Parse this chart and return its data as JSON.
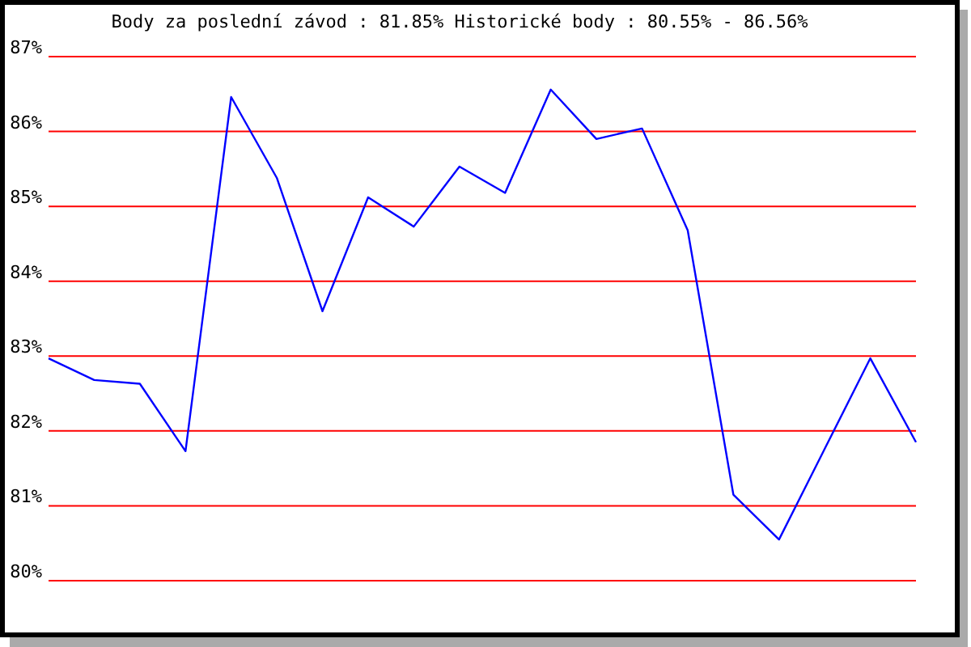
{
  "chart_data": {
    "type": "line",
    "title": "Body za poslední závod : 81.85%  Historické body : 80.55% - 86.56%",
    "categories": [
      null,
      null,
      null,
      null,
      null,
      null,
      null,
      null,
      null,
      null,
      null,
      null,
      null,
      null,
      null,
      null,
      null,
      null,
      null,
      null
    ],
    "series": [
      {
        "color": "#0000ff",
        "values": [
          82.97,
          82.68,
          82.63,
          81.73,
          86.46,
          85.38,
          83.6,
          85.12,
          84.73,
          85.53,
          85.18,
          86.56,
          85.9,
          86.04,
          84.68,
          81.15,
          80.55,
          81.76,
          82.97,
          81.85
        ]
      }
    ],
    "ylim": [
      80,
      87
    ],
    "yticks": [
      {
        "value": 80,
        "label": "80%"
      },
      {
        "value": 81,
        "label": "81%"
      },
      {
        "value": 82,
        "label": "82%"
      },
      {
        "value": 83,
        "label": "83%"
      },
      {
        "value": 84,
        "label": "84%"
      },
      {
        "value": 85,
        "label": "85%"
      },
      {
        "value": 86,
        "label": "86%"
      },
      {
        "value": 87,
        "label": "87%"
      }
    ],
    "grid": "y",
    "tick_labels": "y"
  }
}
